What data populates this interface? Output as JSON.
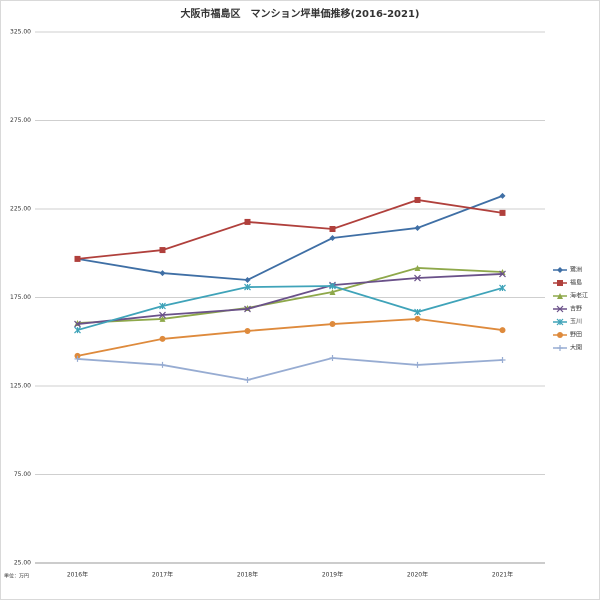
{
  "chart_data": {
    "type": "line",
    "title": "大阪市福島区　マンション坪単価推移(2016-2021)",
    "note": "単位：万円",
    "categories": [
      "2016年",
      "2017年",
      "2018年",
      "2019年",
      "2020年",
      "2021年"
    ],
    "series": [
      {
        "name": "鷺洲",
        "color": "#3f6fa5",
        "marker": "diamond",
        "values": [
          196.8,
          188.8,
          184.9,
          208.6,
          214.3,
          232.4
        ]
      },
      {
        "name": "福島",
        "color": "#b0403c",
        "marker": "square",
        "values": [
          196.8,
          201.8,
          217.7,
          213.7,
          230.1,
          222.8
        ]
      },
      {
        "name": "海老江",
        "color": "#8ea84a",
        "marker": "triangle",
        "values": [
          160.6,
          162.9,
          169.1,
          178.1,
          191.7,
          189.4
        ]
      },
      {
        "name": "吉野",
        "color": "#6a5189",
        "marker": "x",
        "values": [
          160.0,
          165.1,
          168.5,
          182.0,
          186.0,
          188.3
        ]
      },
      {
        "name": "玉川",
        "color": "#3fa3b9",
        "marker": "star",
        "values": [
          156.6,
          170.2,
          180.9,
          181.5,
          166.8,
          180.4
        ]
      },
      {
        "name": "野田",
        "color": "#de8a3c",
        "marker": "circle",
        "values": [
          142.0,
          151.6,
          156.1,
          160.0,
          162.9,
          156.6
        ]
      },
      {
        "name": "大開",
        "color": "#97acd2",
        "marker": "plus",
        "values": [
          140.3,
          136.9,
          128.4,
          140.8,
          136.9,
          139.7
        ]
      }
    ],
    "ylim": [
      25,
      325
    ],
    "yticks": [
      {
        "value": 25,
        "label": "25.00"
      },
      {
        "value": 75,
        "label": "75.00"
      },
      {
        "value": 125,
        "label": "125.00"
      },
      {
        "value": 175,
        "label": "175.00"
      },
      {
        "value": 225,
        "label": "225.00"
      },
      {
        "value": 275,
        "label": "275.00"
      },
      {
        "value": 325,
        "label": "325.00"
      }
    ],
    "grid": true,
    "legend": "right"
  }
}
